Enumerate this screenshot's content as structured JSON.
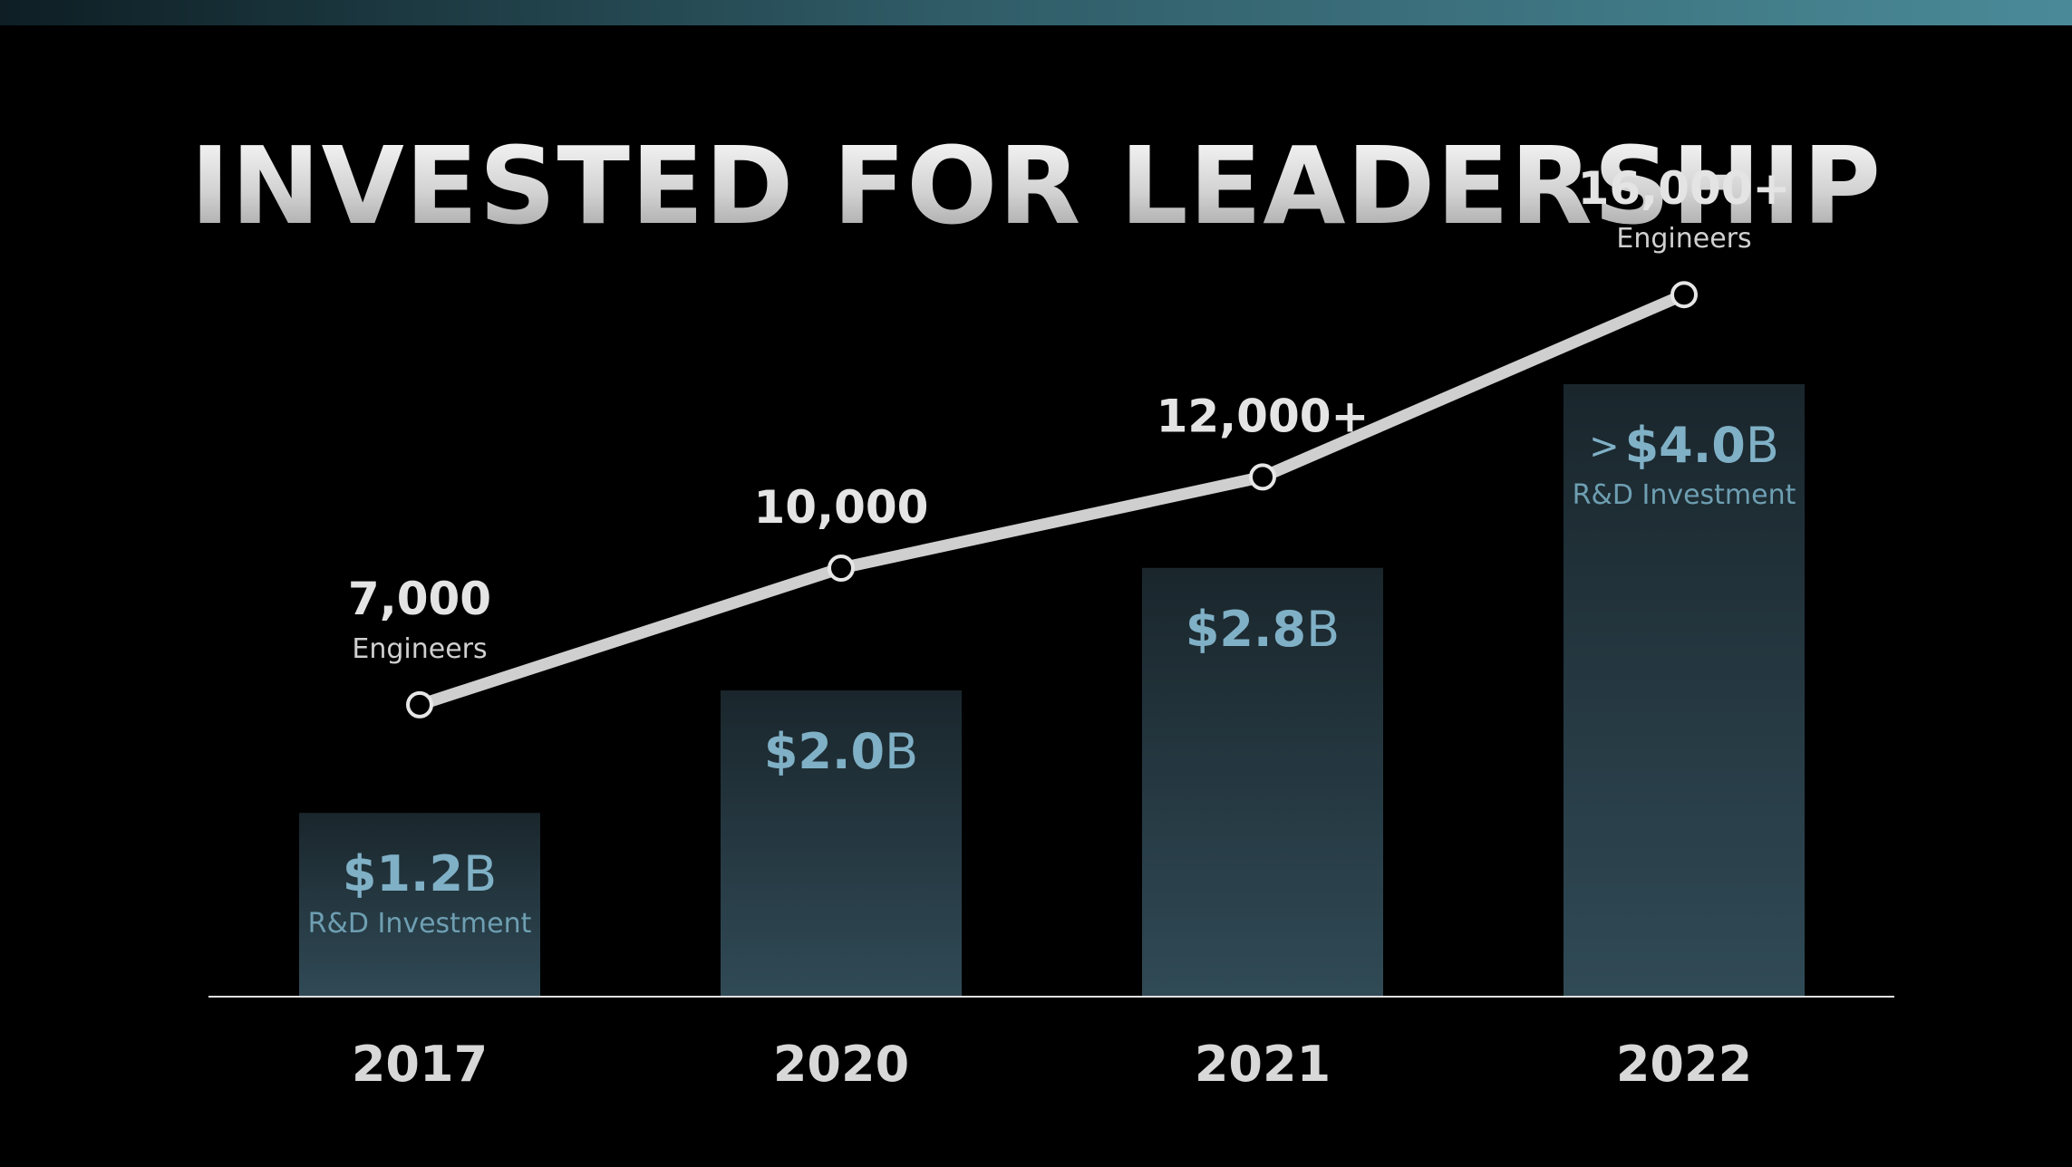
{
  "title": "INVESTED FOR LEADERSHIP",
  "chart_data": {
    "type": "bar",
    "categories": [
      "2017",
      "2020",
      "2021",
      "2022"
    ],
    "series": [
      {
        "values": [
          1.2,
          2.0,
          2.8,
          4.0
        ],
        "labels": [
          "$1.2B",
          "$2.0B",
          "$2.8B",
          ">$4.0B"
        ],
        "sublabels": [
          "R&D Investment",
          "",
          "",
          "R&D Investment"
        ],
        "color": "#2e4a56"
      },
      {
        "type": "line",
        "values": [
          7000,
          10000,
          12000,
          16000
        ],
        "labels": [
          "7,000",
          "10,000",
          "12,000+",
          "16,000+"
        ],
        "sublabels": [
          "Engineers",
          "",
          "",
          "Engineers"
        ],
        "color": "#cfcfcf"
      }
    ],
    "title": "INVESTED FOR LEADERSHIP",
    "xlabel": "",
    "ylabel": "",
    "grid": false
  },
  "colors": {
    "background": "#000000",
    "bar_top": "#1a262c",
    "bar_bottom": "#304a56",
    "bar_label": "#7fb0c6",
    "line": "#cfcfcf",
    "accent_bar": "#4a8a98"
  }
}
